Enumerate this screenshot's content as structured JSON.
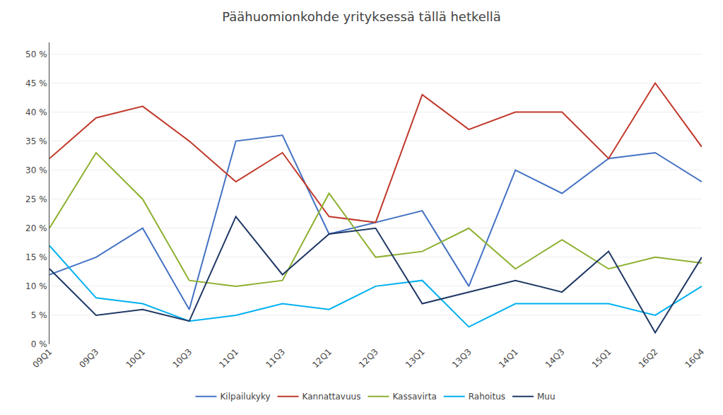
{
  "chart_data": {
    "type": "line",
    "title": "Päähuomionkohde yrityksessä tällä hetkellä",
    "categories": [
      "09Q1",
      "09Q3",
      "10Q1",
      "10Q3",
      "11Q1",
      "11Q3",
      "12Q1",
      "12Q3",
      "13Q1",
      "13Q3",
      "14Q1",
      "14Q3",
      "15Q1",
      "16Q2",
      "16Q4"
    ],
    "series": [
      {
        "name": "Kilpailukyky",
        "color": "#4472c4",
        "values": [
          12,
          15,
          20,
          6,
          35,
          36,
          19,
          21,
          23,
          10,
          30,
          26,
          32,
          33,
          28
        ]
      },
      {
        "name": "Kannattavuus",
        "color": "#c0392b",
        "values": [
          32,
          39,
          41,
          35,
          28,
          33,
          22,
          21,
          43,
          37,
          40,
          40,
          32,
          45,
          34
        ]
      },
      {
        "name": "Kassavirta",
        "color": "#8db030",
        "values": [
          20,
          33,
          25,
          11,
          10,
          11,
          26,
          15,
          16,
          20,
          13,
          18,
          13,
          15,
          14
        ]
      },
      {
        "name": "Rahoitus",
        "color": "#00b0f0",
        "values": [
          17,
          8,
          7,
          4,
          5,
          7,
          6,
          10,
          11,
          3,
          7,
          7,
          7,
          5,
          10
        ]
      },
      {
        "name": "Muu",
        "color": "#1f3864",
        "values": [
          13,
          5,
          6,
          4,
          22,
          12,
          19,
          20,
          7,
          9,
          11,
          9,
          16,
          2,
          15
        ]
      }
    ],
    "ylim": [
      0,
      52
    ],
    "yticks": [
      {
        "value": 0,
        "label": "0 %"
      },
      {
        "value": 5,
        "label": "5 %"
      },
      {
        "value": 10,
        "label": "10 %"
      },
      {
        "value": 15,
        "label": "15 %"
      },
      {
        "value": 20,
        "label": "20 %"
      },
      {
        "value": 25,
        "label": "25 %"
      },
      {
        "value": 30,
        "label": "30 %"
      },
      {
        "value": 35,
        "label": "35 %"
      },
      {
        "value": 40,
        "label": "40 %"
      },
      {
        "value": 45,
        "label": "45 %"
      },
      {
        "value": 50,
        "label": "50 %"
      }
    ],
    "grid": true,
    "legend": "bottom"
  }
}
